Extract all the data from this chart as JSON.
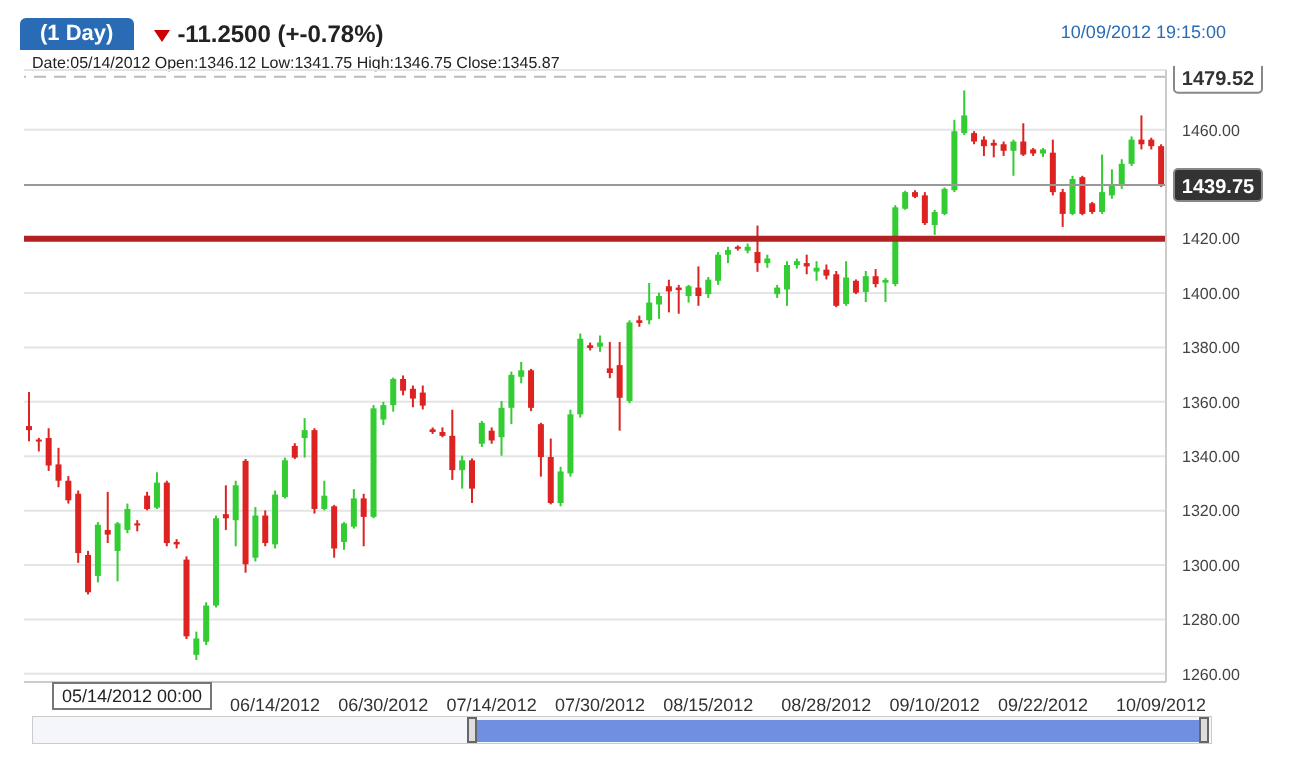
{
  "chart_data": {
    "type": "candlestick",
    "title": "(1 Day)",
    "annotations": [
      "-11.2500 (+-0.78%)",
      "10/09/2012 19:15:00",
      "Date:05/14/2012 Open:1346.12 Low:1341.75 High:1346.75 Close:1345.87",
      "05/14/2012 00:00"
    ],
    "categories": [
      null,
      null,
      null,
      null,
      null,
      null,
      null,
      null,
      null,
      null,
      null,
      null,
      null,
      null,
      null,
      null,
      null,
      null,
      null,
      null,
      null,
      null,
      null,
      null,
      null,
      "06/14/2012",
      null,
      null,
      null,
      null,
      null,
      null,
      null,
      null,
      null,
      null,
      "06/30/2012",
      null,
      null,
      null,
      null,
      null,
      null,
      null,
      null,
      null,
      null,
      "07/14/2012",
      null,
      null,
      null,
      null,
      null,
      null,
      null,
      null,
      null,
      null,
      "07/30/2012",
      null,
      null,
      null,
      null,
      null,
      null,
      null,
      null,
      null,
      null,
      "08/15/2012",
      null,
      null,
      null,
      null,
      null,
      null,
      null,
      null,
      null,
      null,
      null,
      "08/28/2012",
      null,
      null,
      null,
      null,
      null,
      null,
      null,
      null,
      null,
      null,
      "09/10/2012",
      null,
      null,
      null,
      null,
      null,
      null,
      null,
      null,
      null,
      null,
      "09/22/2012",
      null,
      null,
      null,
      null,
      null,
      null,
      null,
      null,
      null,
      null,
      null,
      "10/09/2012"
    ],
    "colors": [
      "#dd2222",
      "#dd2222",
      "#dd2222",
      "#dd2222",
      "#dd2222",
      "#dd2222",
      "#dd2222",
      "#33cc33",
      "#dd2222",
      "#33cc33",
      "#33cc33",
      "#dd2222",
      "#dd2222",
      "#33cc33",
      "#dd2222",
      "#dd2222",
      "#dd2222",
      "#33cc33",
      "#33cc33",
      "#33cc33",
      "#dd2222",
      "#33cc33",
      "#dd2222",
      "#33cc33",
      "#dd2222",
      "#33cc33",
      "#33cc33",
      "#dd2222",
      "#33cc33",
      "#dd2222",
      "#33cc33",
      "#dd2222",
      "#33cc33",
      "#33cc33",
      "#dd2222",
      "#33cc33",
      "#33cc33",
      "#33cc33",
      "#dd2222",
      "#dd2222",
      "#dd2222",
      "#dd2222",
      "#dd2222",
      "#dd2222",
      "#33cc33",
      "#dd2222",
      "#33cc33",
      "#dd2222",
      "#33cc33",
      "#33cc33",
      "#33cc33",
      "#dd2222",
      "#dd2222",
      "#dd2222",
      "#33cc33",
      "#33cc33",
      "#33cc33",
      "#dd2222",
      "#33cc33",
      "#dd2222",
      "#dd2222",
      "#33cc33",
      "#dd2222",
      "#33cc33",
      "#33cc33",
      "#dd2222",
      "#dd2222",
      "#33cc33",
      "#dd2222",
      "#33cc33",
      "#33cc33",
      "#33cc33",
      "#dd2222",
      "#33cc33",
      "#dd2222",
      "#33cc33",
      "#33cc33",
      "#33cc33",
      "#33cc33",
      "#dd2222",
      "#33cc33",
      "#dd2222",
      "#dd2222",
      "#33cc33",
      "#dd2222",
      "#33cc33",
      "#dd2222",
      "#33cc33",
      "#33cc33",
      "#33cc33",
      "#dd2222",
      "#dd2222",
      "#33cc33",
      "#33cc33",
      "#33cc33",
      "#33cc33",
      "#dd2222",
      "#dd2222",
      "#dd2222",
      "#dd2222",
      "#33cc33",
      "#dd2222",
      "#dd2222",
      "#33cc33",
      "#dd2222",
      "#dd2222",
      "#33cc33",
      "#dd2222",
      "#dd2222",
      "#33cc33",
      "#33cc33",
      "#33cc33",
      "#33cc33",
      "#dd2222",
      "#dd2222",
      "#dd2222"
    ],
    "ohlc": [
      [
        1351.1,
        1363.6,
        1345.5,
        1349.6
      ],
      [
        1346.12,
        1346.75,
        1341.75,
        1345.87
      ],
      [
        1346.7,
        1350.3,
        1334.6,
        1336.6
      ],
      [
        1337.0,
        1343.1,
        1328.6,
        1331.0
      ],
      [
        1331.0,
        1332.7,
        1322.6,
        1323.8
      ],
      [
        1326.2,
        1327.4,
        1300.8,
        1304.4
      ],
      [
        1303.7,
        1305.2,
        1289.2,
        1290.0
      ],
      [
        1296.0,
        1315.8,
        1293.6,
        1314.8
      ],
      [
        1312.9,
        1326.9,
        1308.1,
        1311.2
      ],
      [
        1305.2,
        1315.8,
        1294.0,
        1315.3
      ],
      [
        1312.9,
        1322.6,
        1311.7,
        1320.6
      ],
      [
        1315.3,
        1316.5,
        1312.4,
        1314.6
      ],
      [
        1325.5,
        1326.9,
        1320.1,
        1320.6
      ],
      [
        1321.1,
        1334.1,
        1320.6,
        1330.3
      ],
      [
        1330.3,
        1331.0,
        1306.9,
        1308.1
      ],
      [
        1308.5,
        1309.5,
        1306.1,
        1307.6
      ],
      [
        1302.0,
        1303.2,
        1272.8,
        1273.8
      ],
      [
        1267.0,
        1275.5,
        1265.1,
        1273.0
      ],
      [
        1271.8,
        1286.3,
        1270.6,
        1285.1
      ],
      [
        1285.1,
        1318.2,
        1284.4,
        1317.2
      ],
      [
        1318.7,
        1329.3,
        1312.9,
        1317.2
      ],
      [
        1316.5,
        1331.0,
        1306.9,
        1329.3
      ],
      [
        1338.3,
        1339.0,
        1297.2,
        1300.3
      ],
      [
        1302.7,
        1321.3,
        1301.3,
        1318.2
      ],
      [
        1318.2,
        1320.1,
        1306.9,
        1308.1
      ],
      [
        1307.6,
        1327.4,
        1306.1,
        1325.9
      ],
      [
        1325.0,
        1339.5,
        1324.5,
        1338.5
      ],
      [
        1343.8,
        1344.8,
        1339.0,
        1339.5
      ],
      [
        1346.7,
        1354.0,
        1339.5,
        1349.6
      ],
      [
        1349.6,
        1350.3,
        1318.9,
        1320.6
      ],
      [
        1320.6,
        1331.0,
        1320.1,
        1325.5
      ],
      [
        1321.6,
        1322.1,
        1302.7,
        1306.1
      ],
      [
        1308.5,
        1315.8,
        1305.6,
        1315.3
      ],
      [
        1314.1,
        1327.9,
        1313.4,
        1324.5
      ],
      [
        1324.5,
        1326.2,
        1306.9,
        1317.7
      ],
      [
        1317.7,
        1358.8,
        1317.2,
        1357.6
      ],
      [
        1353.5,
        1360.0,
        1351.5,
        1358.8
      ],
      [
        1358.8,
        1368.9,
        1356.4,
        1368.4
      ],
      [
        1368.4,
        1369.7,
        1362.4,
        1364.1
      ],
      [
        1364.8,
        1366.0,
        1358.0,
        1361.2
      ],
      [
        1363.4,
        1366.0,
        1357.2,
        1358.6
      ],
      [
        1349.9,
        1350.6,
        1348.2,
        1348.9
      ],
      [
        1348.9,
        1350.6,
        1347.0,
        1347.5
      ],
      [
        1347.5,
        1357.1,
        1331.3,
        1334.9
      ],
      [
        1334.9,
        1340.2,
        1328.1,
        1338.5
      ],
      [
        1338.5,
        1339.2,
        1322.8,
        1328.1
      ],
      [
        1344.6,
        1353.0,
        1343.4,
        1352.3
      ],
      [
        1349.4,
        1350.6,
        1344.6,
        1345.8
      ],
      [
        1347.0,
        1360.3,
        1340.2,
        1357.8
      ],
      [
        1357.8,
        1371.1,
        1351.8,
        1369.9
      ],
      [
        1369.2,
        1374.7,
        1366.8,
        1371.6
      ],
      [
        1371.6,
        1372.1,
        1356.6,
        1357.8
      ],
      [
        1351.8,
        1352.3,
        1332.5,
        1339.7
      ],
      [
        1339.7,
        1346.5,
        1322.3,
        1322.8
      ],
      [
        1322.8,
        1336.1,
        1321.6,
        1334.4
      ],
      [
        1333.7,
        1357.1,
        1332.5,
        1355.4
      ],
      [
        1355.4,
        1385.1,
        1354.2,
        1383.2
      ],
      [
        1380.8,
        1381.8,
        1378.9,
        1379.8
      ],
      [
        1380.3,
        1384.4,
        1378.4,
        1381.8
      ],
      [
        1372.3,
        1382.0,
        1368.7,
        1370.6
      ],
      [
        1373.5,
        1382.0,
        1349.4,
        1361.5
      ],
      [
        1360.3,
        1390.0,
        1359.5,
        1389.2
      ],
      [
        1390.0,
        1391.7,
        1387.6,
        1389.0
      ],
      [
        1390.0,
        1403.7,
        1388.5,
        1396.5
      ],
      [
        1395.8,
        1400.1,
        1390.5,
        1398.9
      ],
      [
        1402.5,
        1404.9,
        1392.9,
        1400.6
      ],
      [
        1402.0,
        1403.0,
        1392.4,
        1401.1
      ],
      [
        1398.9,
        1403.0,
        1396.5,
        1402.5
      ],
      [
        1402.0,
        1409.8,
        1395.3,
        1398.9
      ],
      [
        1399.6,
        1405.9,
        1398.2,
        1404.9
      ],
      [
        1404.5,
        1415.1,
        1403.0,
        1414.1
      ],
      [
        1414.1,
        1417.0,
        1411.0,
        1415.8
      ],
      [
        1417.0,
        1417.5,
        1415.6,
        1416.3
      ],
      [
        1415.6,
        1418.2,
        1414.6,
        1417.0
      ],
      [
        1415.1,
        1424.8,
        1407.8,
        1411.0
      ],
      [
        1411.0,
        1414.1,
        1409.3,
        1412.7
      ],
      [
        1399.6,
        1403.0,
        1398.2,
        1402.0
      ],
      [
        1401.3,
        1411.7,
        1395.3,
        1410.3
      ],
      [
        1410.3,
        1412.7,
        1409.0,
        1411.7
      ],
      [
        1411.0,
        1414.1,
        1406.9,
        1409.8
      ],
      [
        1407.9,
        1411.7,
        1404.5,
        1409.3
      ],
      [
        1408.6,
        1410.5,
        1405.0,
        1406.4
      ],
      [
        1406.9,
        1408.1,
        1394.8,
        1395.3
      ],
      [
        1396.0,
        1411.7,
        1395.3,
        1405.7
      ],
      [
        1404.5,
        1405.0,
        1399.6,
        1400.1
      ],
      [
        1400.4,
        1408.1,
        1396.7,
        1406.2
      ],
      [
        1406.2,
        1408.8,
        1402.1,
        1403.3
      ],
      [
        1403.8,
        1405.5,
        1396.7,
        1404.8
      ],
      [
        1403.3,
        1432.3,
        1402.5,
        1431.5
      ],
      [
        1431.0,
        1437.6,
        1430.6,
        1437.1
      ],
      [
        1437.1,
        1437.8,
        1434.9,
        1435.4
      ],
      [
        1435.9,
        1437.1,
        1425.0,
        1425.7
      ],
      [
        1425.0,
        1430.6,
        1421.4,
        1429.8
      ],
      [
        1429.1,
        1438.8,
        1428.6,
        1438.3
      ],
      [
        1437.8,
        1463.7,
        1437.1,
        1459.5
      ],
      [
        1458.8,
        1474.5,
        1458.1,
        1465.3
      ],
      [
        1458.8,
        1459.5,
        1454.7,
        1455.7
      ],
      [
        1456.4,
        1457.6,
        1450.4,
        1454.0
      ],
      [
        1455.2,
        1456.4,
        1449.9,
        1454.2
      ],
      [
        1454.7,
        1455.7,
        1450.4,
        1452.3
      ],
      [
        1452.3,
        1456.4,
        1443.1,
        1455.7
      ],
      [
        1455.7,
        1462.4,
        1450.4,
        1450.9
      ],
      [
        1452.8,
        1453.3,
        1450.4,
        1451.3
      ],
      [
        1451.3,
        1453.3,
        1450.0,
        1452.8
      ],
      [
        1451.6,
        1456.4,
        1435.9,
        1437.1
      ],
      [
        1437.1,
        1438.3,
        1424.3,
        1429.1
      ],
      [
        1429.1,
        1443.1,
        1428.6,
        1441.9
      ],
      [
        1442.6,
        1443.1,
        1428.6,
        1429.1
      ],
      [
        1433.0,
        1433.5,
        1429.1,
        1429.8
      ],
      [
        1429.8,
        1450.9,
        1429.1,
        1437.1
      ],
      [
        1435.9,
        1445.5,
        1434.7,
        1439.5
      ],
      [
        1439.5,
        1449.2,
        1438.3,
        1447.5
      ],
      [
        1447.5,
        1457.6,
        1446.7,
        1456.4
      ],
      [
        1456.4,
        1465.3,
        1452.8,
        1454.7
      ],
      [
        1456.4,
        1457.1,
        1452.8,
        1454.0
      ],
      [
        1454.0,
        1454.7,
        1439.0,
        1439.75
      ]
    ],
    "ylim": [
      1257,
      1482
    ],
    "yticks": [
      {
        "value": 1260,
        "label": "1260.00"
      },
      {
        "value": 1280,
        "label": "1280.00"
      },
      {
        "value": 1300,
        "label": "1300.00"
      },
      {
        "value": 1320,
        "label": "1320.00"
      },
      {
        "value": 1340,
        "label": "1340.00"
      },
      {
        "value": 1360,
        "label": "1360.00"
      },
      {
        "value": 1380,
        "label": "1380.00"
      },
      {
        "value": 1400,
        "label": "1400.00"
      },
      {
        "value": 1420,
        "label": "1420.00"
      },
      {
        "value": 1460,
        "label": "1460.00"
      }
    ],
    "ref_lines": [
      {
        "axis": "y",
        "value": 1479.52,
        "label": "1479.52",
        "color": "#bbbbbb",
        "line_style": "dashed"
      },
      {
        "axis": "y",
        "value": 1439.75,
        "label": "1439.75",
        "color": "#999999",
        "line_style": "solid"
      },
      {
        "axis": "y",
        "value": 1420,
        "label": null,
        "color": "#b22222",
        "line_style": "solid"
      }
    ],
    "grid": "y"
  }
}
